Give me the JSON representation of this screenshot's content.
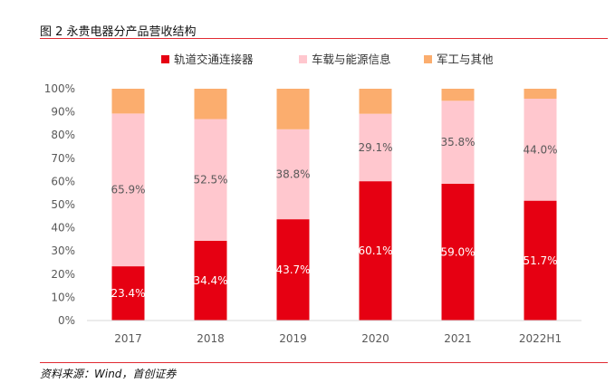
{
  "figure": {
    "title": "图 2 永贵电器分产品营收结构",
    "source": "资料来源：Wind，首创证券"
  },
  "chart_data": {
    "type": "bar",
    "stacked": true,
    "percent": true,
    "categories": [
      "2017",
      "2018",
      "2019",
      "2020",
      "2021",
      "2022H1"
    ],
    "series": [
      {
        "name": "轨道交通连接器",
        "color": "#e60012",
        "values": [
          23.4,
          34.4,
          43.7,
          60.1,
          59.0,
          51.7
        ],
        "labels": [
          "23.4%",
          "34.4%",
          "43.7%",
          "60.1%",
          "59.0%",
          "51.7%"
        ]
      },
      {
        "name": "车载与能源信息",
        "color": "#ffc7ce",
        "values": [
          65.9,
          52.5,
          38.8,
          29.1,
          35.8,
          44.0
        ],
        "labels": [
          "65.9%",
          "52.5%",
          "38.8%",
          "29.1%",
          "35.8%",
          "44.0%"
        ]
      },
      {
        "name": "军工与其他",
        "color": "#fbad6e",
        "values": [
          10.7,
          13.1,
          17.5,
          10.8,
          5.2,
          4.3
        ],
        "labels": []
      }
    ],
    "ylim": [
      0,
      100
    ],
    "yticks": [
      "0%",
      "10%",
      "20%",
      "30%",
      "40%",
      "50%",
      "60%",
      "70%",
      "80%",
      "90%",
      "100%"
    ],
    "grid": false,
    "legend_position": "top"
  }
}
